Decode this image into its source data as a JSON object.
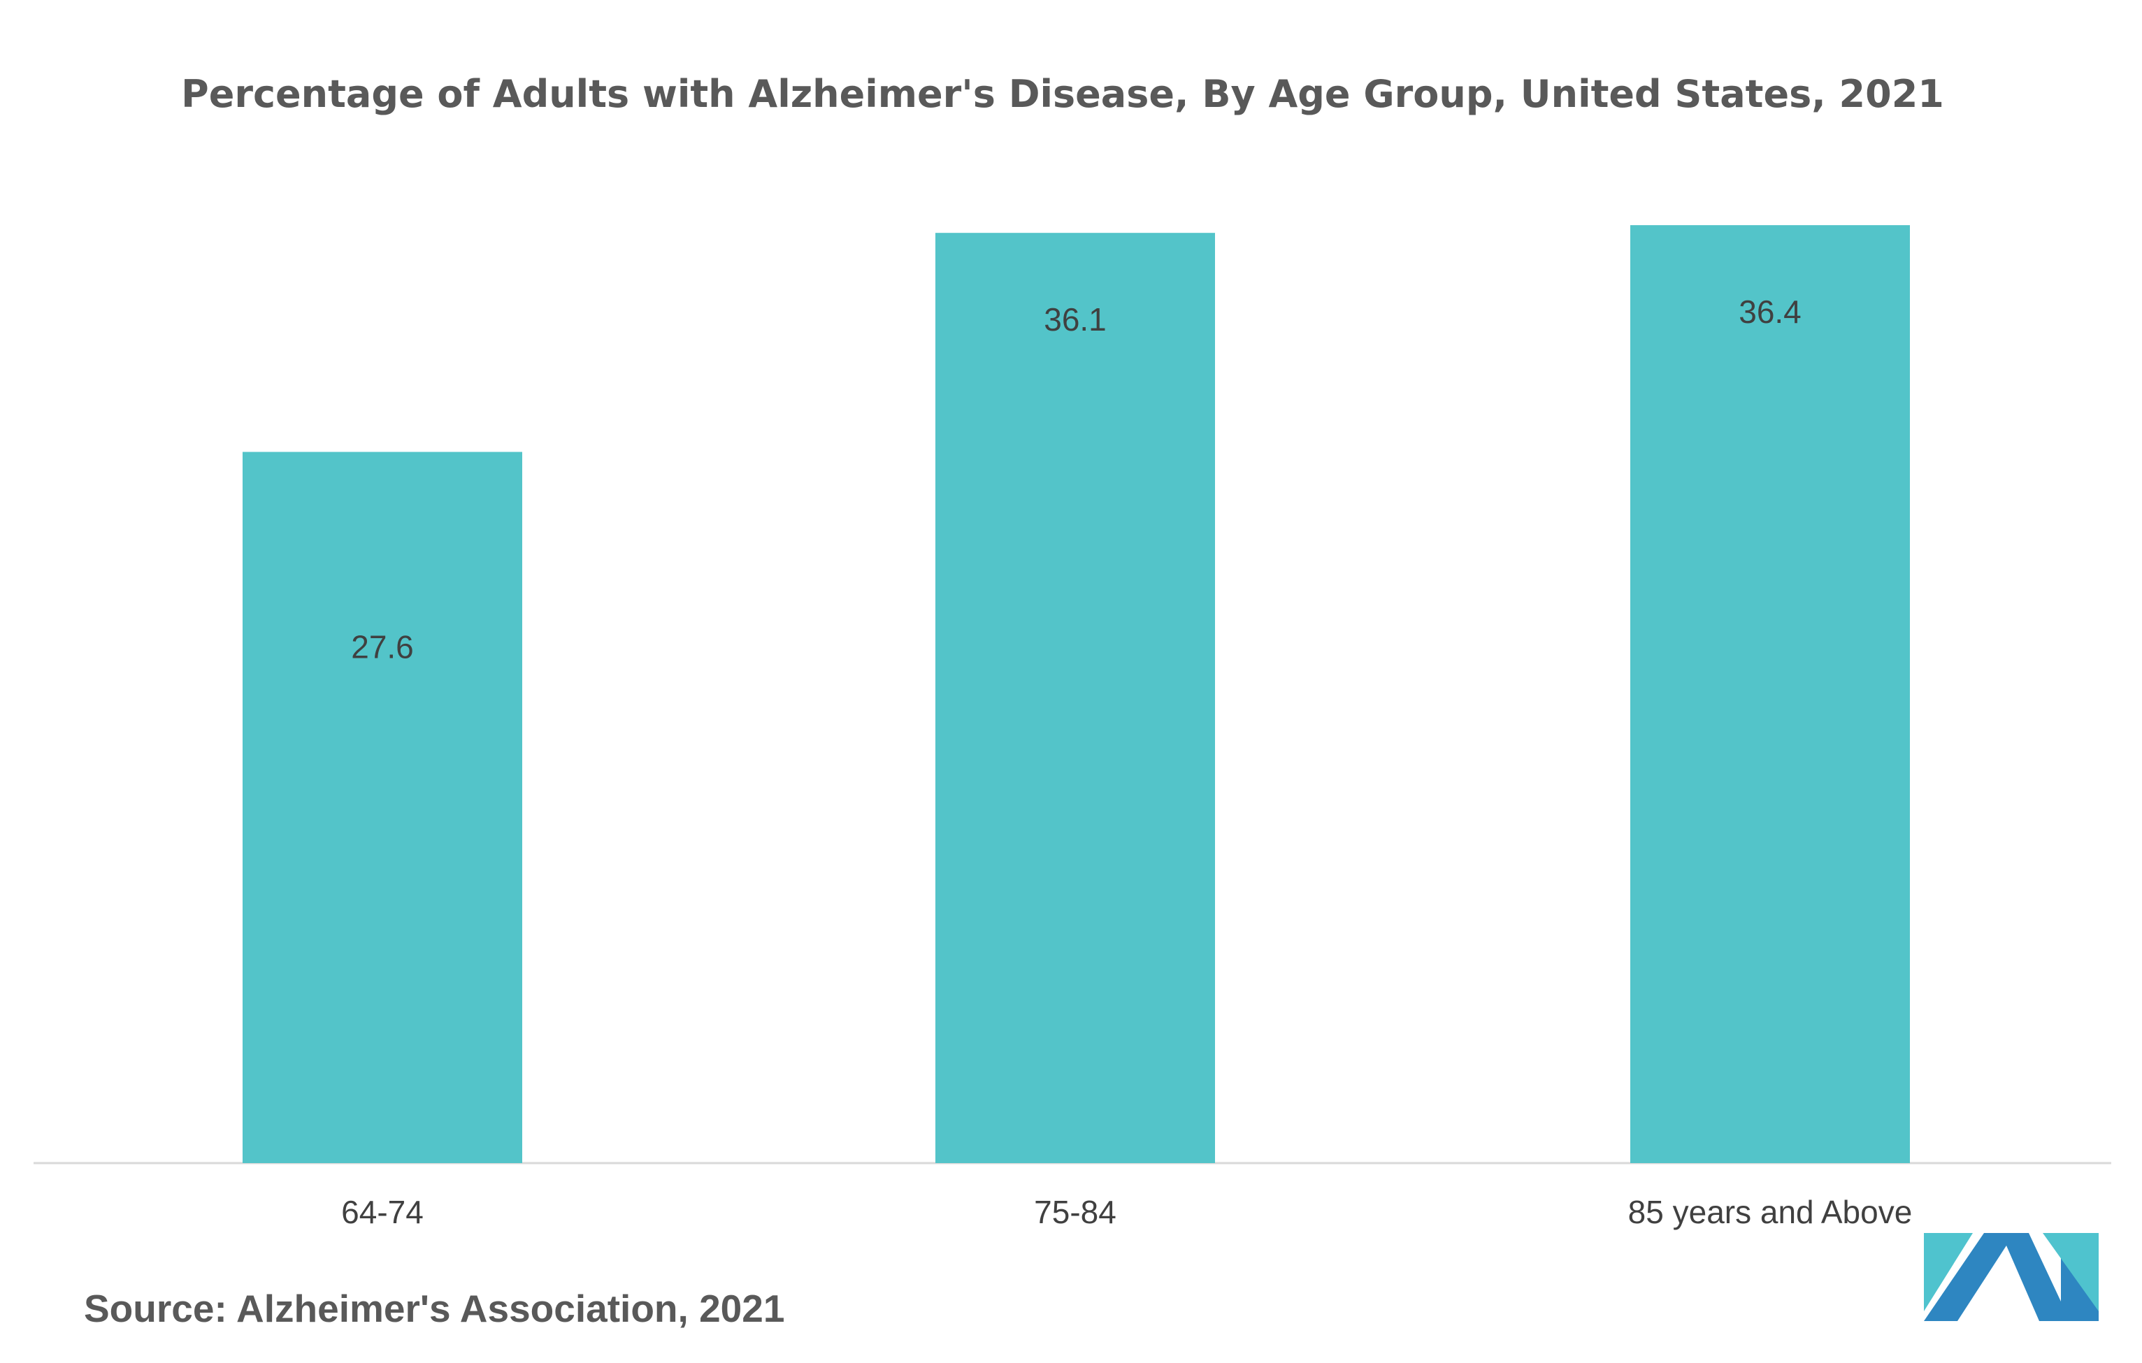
{
  "chart_data": {
    "type": "bar",
    "title": "Percentage of Adults with Alzheimer's Disease, By Age Group, United States, 2021",
    "categories": [
      "64-74",
      "75-84",
      "85 years and Above"
    ],
    "values": [
      27.6,
      36.1,
      36.4
    ],
    "data_labels": [
      "27.6",
      "36.1",
      "36.4"
    ],
    "xlabel": "",
    "ylabel": "",
    "ylim": [
      0,
      37
    ],
    "grid": false,
    "legend": "none",
    "bar_color": "#53C4C9"
  },
  "source": "Source: Alzheimer's Association, 2021",
  "logo": {
    "icon": "mordor-intelligence-logo",
    "colors": [
      "#2E86C1",
      "#4FC3CE"
    ]
  }
}
